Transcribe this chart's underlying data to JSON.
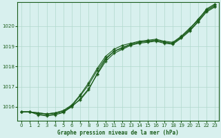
{
  "title": "Graphe pression niveau de la mer (hPa)",
  "background_color": "#d8f0ee",
  "grid_color": "#b0d8cc",
  "line_color": "#1a5c1a",
  "xlim": [
    -0.5,
    23.5
  ],
  "ylim": [
    1015.3,
    1021.2
  ],
  "yticks": [
    1016,
    1017,
    1018,
    1019,
    1020
  ],
  "xticks": [
    0,
    1,
    2,
    3,
    4,
    5,
    6,
    7,
    8,
    9,
    10,
    11,
    12,
    13,
    14,
    15,
    16,
    17,
    18,
    19,
    20,
    21,
    22,
    23
  ],
  "series": [
    [
      1015.75,
      1015.75,
      1015.7,
      1015.65,
      1015.7,
      1015.8,
      1016.05,
      1016.35,
      1016.85,
      1017.65,
      1018.35,
      1018.75,
      1018.9,
      1019.1,
      1019.2,
      1019.25,
      1019.3,
      1019.2,
      1019.15,
      1019.45,
      1019.85,
      1020.35,
      1020.8,
      1021.05
    ],
    [
      1015.75,
      1015.75,
      1015.65,
      1015.6,
      1015.65,
      1015.75,
      1016.0,
      1016.4,
      1016.9,
      1017.6,
      1018.25,
      1018.65,
      1018.85,
      1019.05,
      1019.15,
      1019.2,
      1019.25,
      1019.15,
      1019.1,
      1019.4,
      1019.75,
      1020.2,
      1020.7,
      1020.95
    ],
    [
      1015.75,
      1015.75,
      1015.6,
      1015.55,
      1015.6,
      1015.72,
      1016.05,
      1016.55,
      1017.1,
      1017.8,
      1018.4,
      1018.75,
      1018.95,
      1019.1,
      1019.2,
      1019.25,
      1019.3,
      1019.2,
      1019.15,
      1019.45,
      1019.8,
      1020.25,
      1020.75,
      1021.0
    ],
    [
      1015.75,
      1015.75,
      1015.7,
      1015.65,
      1015.7,
      1015.82,
      1016.1,
      1016.6,
      1017.2,
      1017.9,
      1018.5,
      1018.85,
      1019.05,
      1019.15,
      1019.25,
      1019.3,
      1019.35,
      1019.25,
      1019.2,
      1019.5,
      1019.9,
      1020.3,
      1020.85,
      1021.1
    ]
  ]
}
